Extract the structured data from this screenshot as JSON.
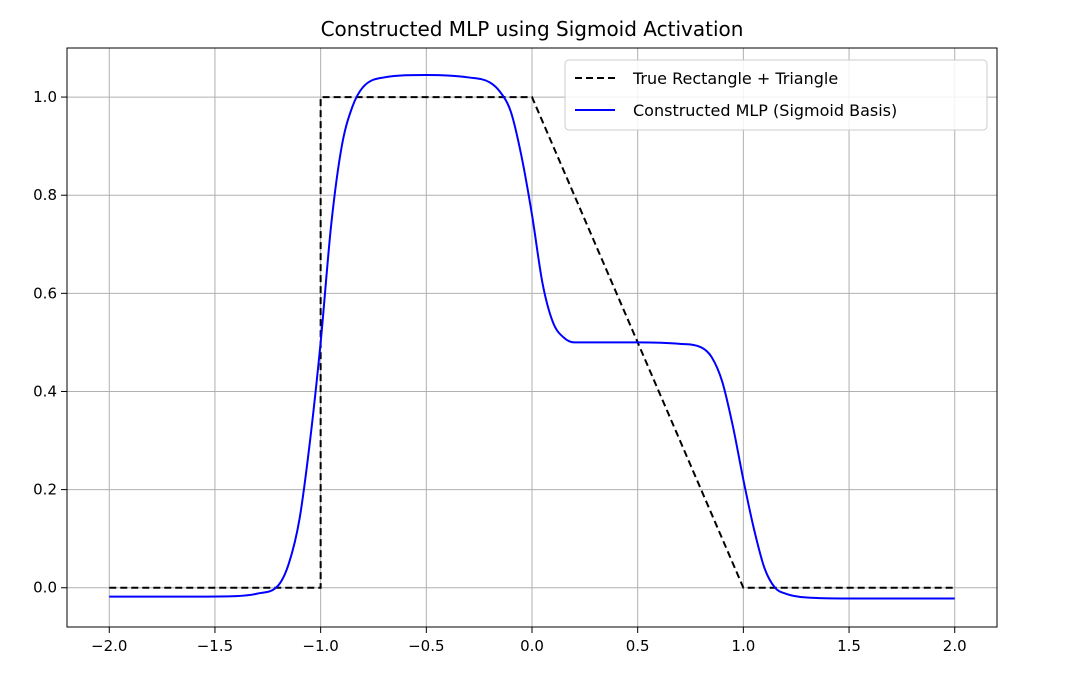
{
  "chart_data": {
    "type": "line",
    "title": "Constructed MLP using Sigmoid Activation",
    "xlabel": "",
    "ylabel": "",
    "xlim": [
      -2.2,
      2.2
    ],
    "ylim": [
      -0.08,
      1.1
    ],
    "grid": true,
    "legend_position": "top-right",
    "x_ticks": [
      -2.0,
      -1.5,
      -1.0,
      -0.5,
      0.0,
      0.5,
      1.0,
      1.5,
      2.0
    ],
    "x_tick_labels": [
      "−2.0",
      "−1.5",
      "−1.0",
      "−0.5",
      "0.0",
      "0.5",
      "1.0",
      "1.5",
      "2.0"
    ],
    "y_ticks": [
      0.0,
      0.2,
      0.4,
      0.6,
      0.8,
      1.0
    ],
    "y_tick_labels": [
      "0.0",
      "0.2",
      "0.4",
      "0.6",
      "0.8",
      "1.0"
    ],
    "series": [
      {
        "name": "True Rectangle + Triangle",
        "color": "#000000",
        "style": "dashed",
        "x": [
          -2.0,
          -1.0,
          -1.0,
          0.0,
          1.0,
          2.0
        ],
        "y": [
          0.0,
          0.0,
          1.0,
          1.0,
          0.0,
          0.0
        ]
      },
      {
        "name": "Constructed MLP (Sigmoid Basis)",
        "color": "#0000ff",
        "style": "solid",
        "x": [
          -2.0,
          -1.6,
          -1.4,
          -1.3,
          -1.2,
          -1.15,
          -1.1,
          -1.05,
          -1.0,
          -0.95,
          -0.9,
          -0.85,
          -0.8,
          -0.7,
          -0.5,
          -0.3,
          -0.2,
          -0.15,
          -0.1,
          -0.05,
          0.0,
          0.05,
          0.1,
          0.15,
          0.2,
          0.3,
          0.5,
          0.7,
          0.8,
          0.85,
          0.9,
          0.95,
          1.0,
          1.05,
          1.1,
          1.15,
          1.2,
          1.3,
          1.5,
          2.0
        ],
        "y": [
          -0.018,
          -0.018,
          -0.017,
          -0.012,
          0.005,
          0.05,
          0.14,
          0.3,
          0.5,
          0.74,
          0.9,
          0.98,
          1.02,
          1.04,
          1.045,
          1.04,
          1.03,
          1.01,
          0.97,
          0.88,
          0.76,
          0.62,
          0.54,
          0.51,
          0.5,
          0.5,
          0.5,
          0.497,
          0.49,
          0.47,
          0.42,
          0.33,
          0.22,
          0.12,
          0.04,
          0.0,
          -0.012,
          -0.02,
          -0.022,
          -0.022
        ]
      }
    ]
  }
}
